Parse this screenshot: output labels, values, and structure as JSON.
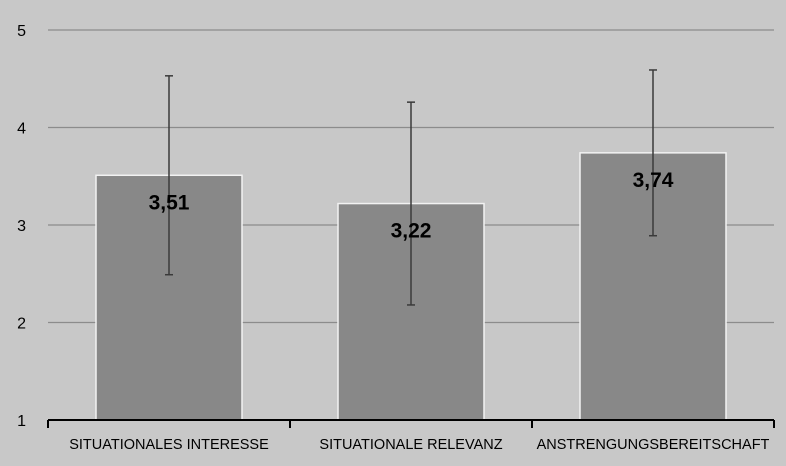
{
  "colors": {
    "plot_background": "#c8c8c8",
    "bar_fill": "#888888",
    "bar_stroke": "#f2f2f2",
    "gridline": "#8c8c8c",
    "axis": "#000000",
    "error_bar": "#3a3a3a",
    "text": "#000000"
  },
  "chart_data": {
    "type": "bar",
    "categories": [
      "SITUATIONALES INTERESSE",
      "SITUATIONALE RELEVANZ",
      "ANSTRENGUNGSBEREITSCHAFT"
    ],
    "values": [
      3.51,
      3.22,
      3.74
    ],
    "data_labels": [
      "3,51",
      "3,22",
      "3,74"
    ],
    "error_bars": [
      {
        "low": 2.49,
        "high": 4.53
      },
      {
        "low": 2.18,
        "high": 4.26
      },
      {
        "low": 2.89,
        "high": 4.59
      }
    ],
    "ylim": [
      1,
      5
    ],
    "yticks": [
      "1",
      "2",
      "3",
      "4",
      "5"
    ],
    "grid": true,
    "title": "",
    "xlabel": "",
    "ylabel": ""
  }
}
